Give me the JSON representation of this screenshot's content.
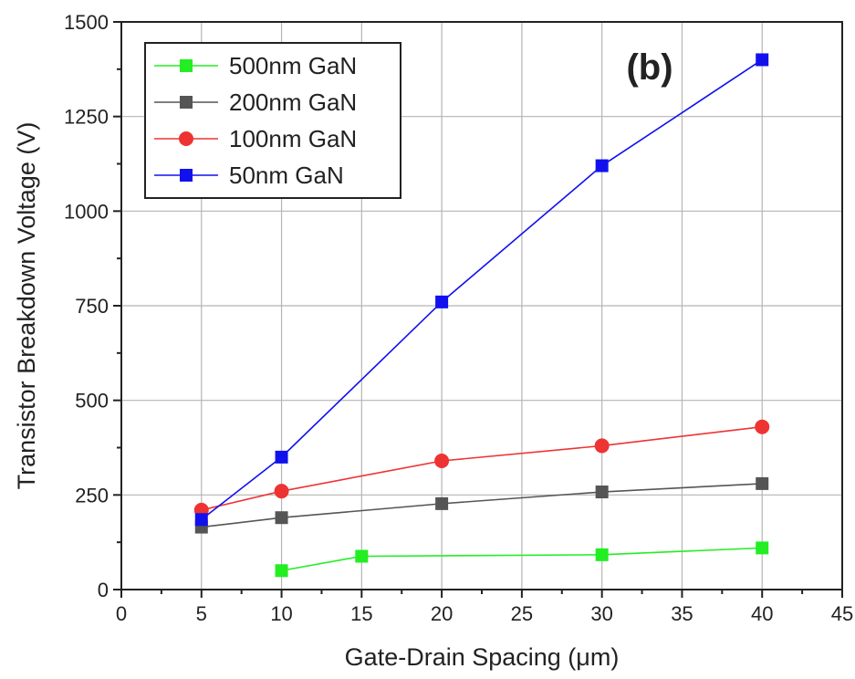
{
  "chart_data": {
    "type": "line",
    "panel_label": "(b)",
    "xlabel": "Gate-Drain Spacing (μm)",
    "ylabel": "Transistor Breakdown Voltage (V)",
    "xlim": [
      0,
      45
    ],
    "ylim": [
      0,
      1500
    ],
    "xticks": [
      0,
      5,
      10,
      15,
      20,
      25,
      30,
      35,
      40,
      45
    ],
    "yticks": [
      0,
      250,
      500,
      750,
      1000,
      1250,
      1500
    ],
    "grid": true,
    "legend_position": "top-left",
    "series": [
      {
        "name": "500nm GaN",
        "color": "#22ee22",
        "marker": "square",
        "x": [
          10,
          15,
          30,
          40
        ],
        "y": [
          50,
          88,
          92,
          110
        ]
      },
      {
        "name": "200nm GaN",
        "color": "#555555",
        "marker": "square",
        "x": [
          5,
          10,
          20,
          30,
          40
        ],
        "y": [
          165,
          190,
          227,
          258,
          280
        ]
      },
      {
        "name": "100nm GaN",
        "color": "#ee3333",
        "marker": "circle",
        "x": [
          5,
          10,
          20,
          30,
          40
        ],
        "y": [
          210,
          260,
          340,
          380,
          430
        ]
      },
      {
        "name": "50nm GaN",
        "color": "#1111ee",
        "marker": "square",
        "x": [
          5,
          10,
          20,
          30,
          40
        ],
        "y": [
          185,
          350,
          760,
          1120,
          1400
        ]
      }
    ]
  }
}
